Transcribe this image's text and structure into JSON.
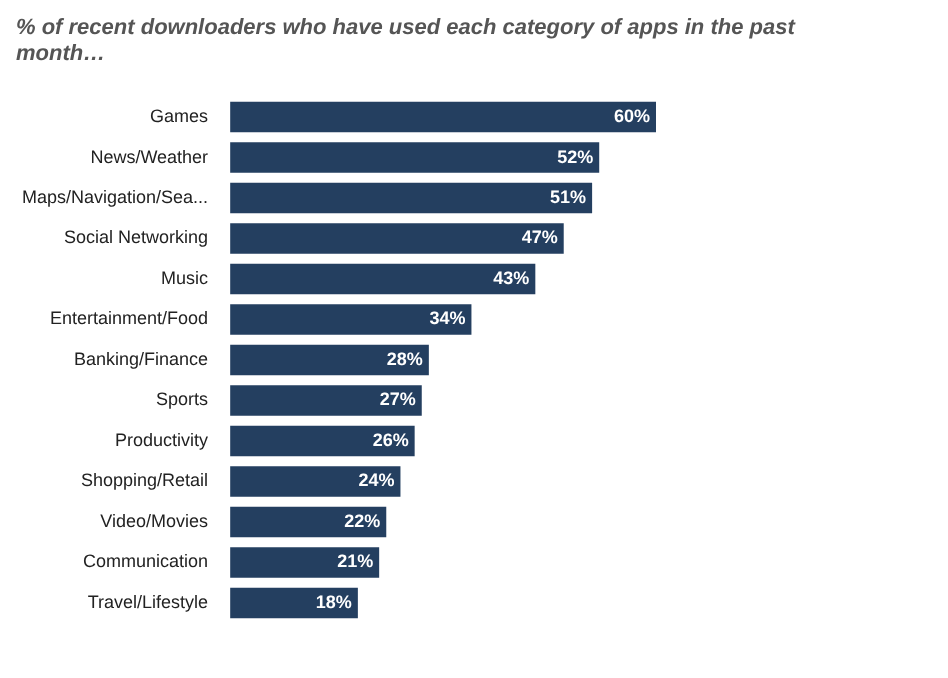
{
  "chart_data": {
    "type": "bar",
    "orientation": "horizontal",
    "title": "% of recent downloaders who have used each category of apps in the past month…",
    "categories": [
      "Games",
      "News/Weather",
      "Maps/Navigation/Sea...",
      "Social Networking",
      "Music",
      "Entertainment/Food",
      "Banking/Finance",
      "Sports",
      "Productivity",
      "Shopping/Retail",
      "Video/Movies",
      "Communication",
      "Travel/Lifestyle"
    ],
    "values": [
      60,
      52,
      51,
      47,
      43,
      34,
      28,
      27,
      26,
      24,
      22,
      21,
      18
    ],
    "value_labels": [
      "60%",
      "52%",
      "51%",
      "47%",
      "43%",
      "34%",
      "28%",
      "27%",
      "26%",
      "24%",
      "22%",
      "21%",
      "18%"
    ],
    "color": "#243f60",
    "tick_labels": "y"
  }
}
